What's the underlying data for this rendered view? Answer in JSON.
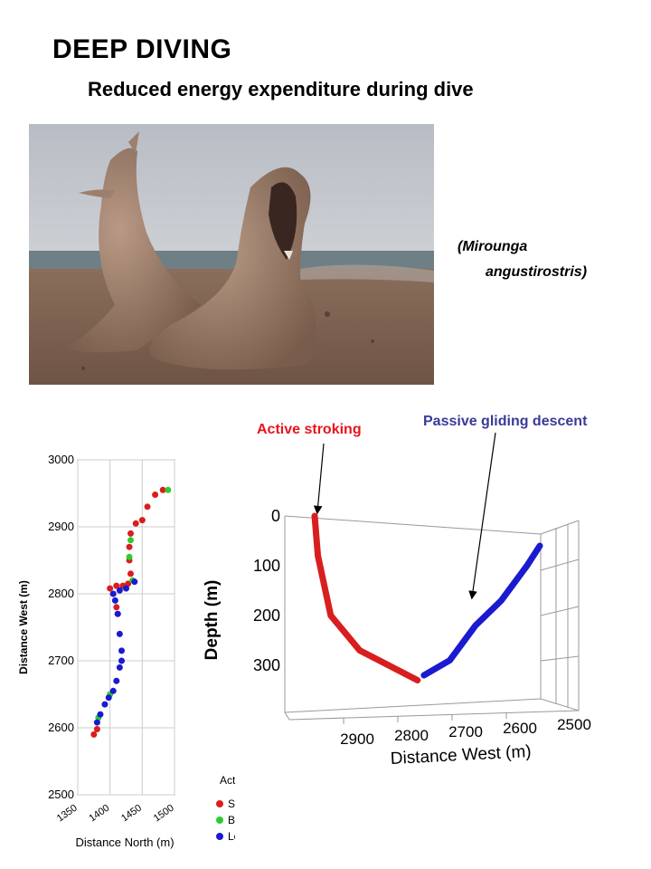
{
  "title": "DEEP DIVING",
  "subtitle": "Reduced energy expenditure during dive",
  "photo": {
    "species_line1": "(Mirounga",
    "species_line2": "angustirostris)"
  },
  "callouts": {
    "active": "Active stroking",
    "passive": "Passive gliding descent"
  },
  "colors": {
    "stroking": "#d81e1e",
    "brief_glides": "#2ecc2e",
    "long_glides": "#1a1ad0",
    "callout_active": "#e8141c",
    "callout_passive": "#3a3a99"
  },
  "chart_data": [
    {
      "type": "scatter",
      "xlabel": "Distance North (m)",
      "ylabel": "Distance West (m)",
      "xlim": [
        1350,
        1500
      ],
      "ylim": [
        2500,
        3000
      ],
      "x_ticks": [
        "1350",
        "1400",
        "1450",
        "1500"
      ],
      "y_ticks": [
        "2500",
        "2600",
        "2700",
        "2800",
        "2900",
        "3000"
      ],
      "grid": true,
      "legend_title": "Activity",
      "legend": [
        "Stroking",
        "Brief glides",
        "Long glides"
      ],
      "series": [
        {
          "name": "Stroking",
          "x": [
            1482,
            1470,
            1458,
            1450,
            1440,
            1432,
            1430,
            1430,
            1432,
            1428,
            1420,
            1410,
            1400,
            1410,
            1412,
            1380,
            1375
          ],
          "y": [
            2955,
            2948,
            2930,
            2910,
            2905,
            2890,
            2870,
            2850,
            2830,
            2815,
            2812,
            2812,
            2808,
            2780,
            2770,
            2598,
            2590
          ]
        },
        {
          "name": "Brief glides",
          "x": [
            1490,
            1432,
            1430,
            1435,
            1400,
            1382
          ],
          "y": [
            2955,
            2880,
            2855,
            2820,
            2650,
            2615
          ]
        },
        {
          "name": "Long glides",
          "x": [
            1438,
            1425,
            1415,
            1405,
            1408,
            1412,
            1415,
            1418,
            1418,
            1415,
            1410,
            1405,
            1398,
            1392,
            1385,
            1380
          ],
          "y": [
            2818,
            2808,
            2805,
            2800,
            2790,
            2770,
            2740,
            2715,
            2700,
            2690,
            2670,
            2655,
            2645,
            2635,
            2620,
            2608
          ]
        }
      ]
    },
    {
      "type": "line",
      "xlabel": "Distance West (m)",
      "ylabel": "Depth (m)",
      "x_ticks": [
        "2900",
        "2800",
        "2700",
        "2600",
        "2500"
      ],
      "y_ticks": [
        "0",
        "100",
        "200",
        "300"
      ],
      "series": [
        {
          "name": "Stroking",
          "points": [
            [
              2950,
              0
            ],
            [
              2945,
              80
            ],
            [
              2925,
              200
            ],
            [
              2880,
              270
            ],
            [
              2820,
              310
            ],
            [
              2790,
              330
            ]
          ]
        },
        {
          "name": "Long glides",
          "points": [
            [
              2780,
              320
            ],
            [
              2740,
              290
            ],
            [
              2700,
              220
            ],
            [
              2660,
              170
            ],
            [
              2620,
              100
            ],
            [
              2600,
              60
            ]
          ]
        }
      ]
    }
  ]
}
